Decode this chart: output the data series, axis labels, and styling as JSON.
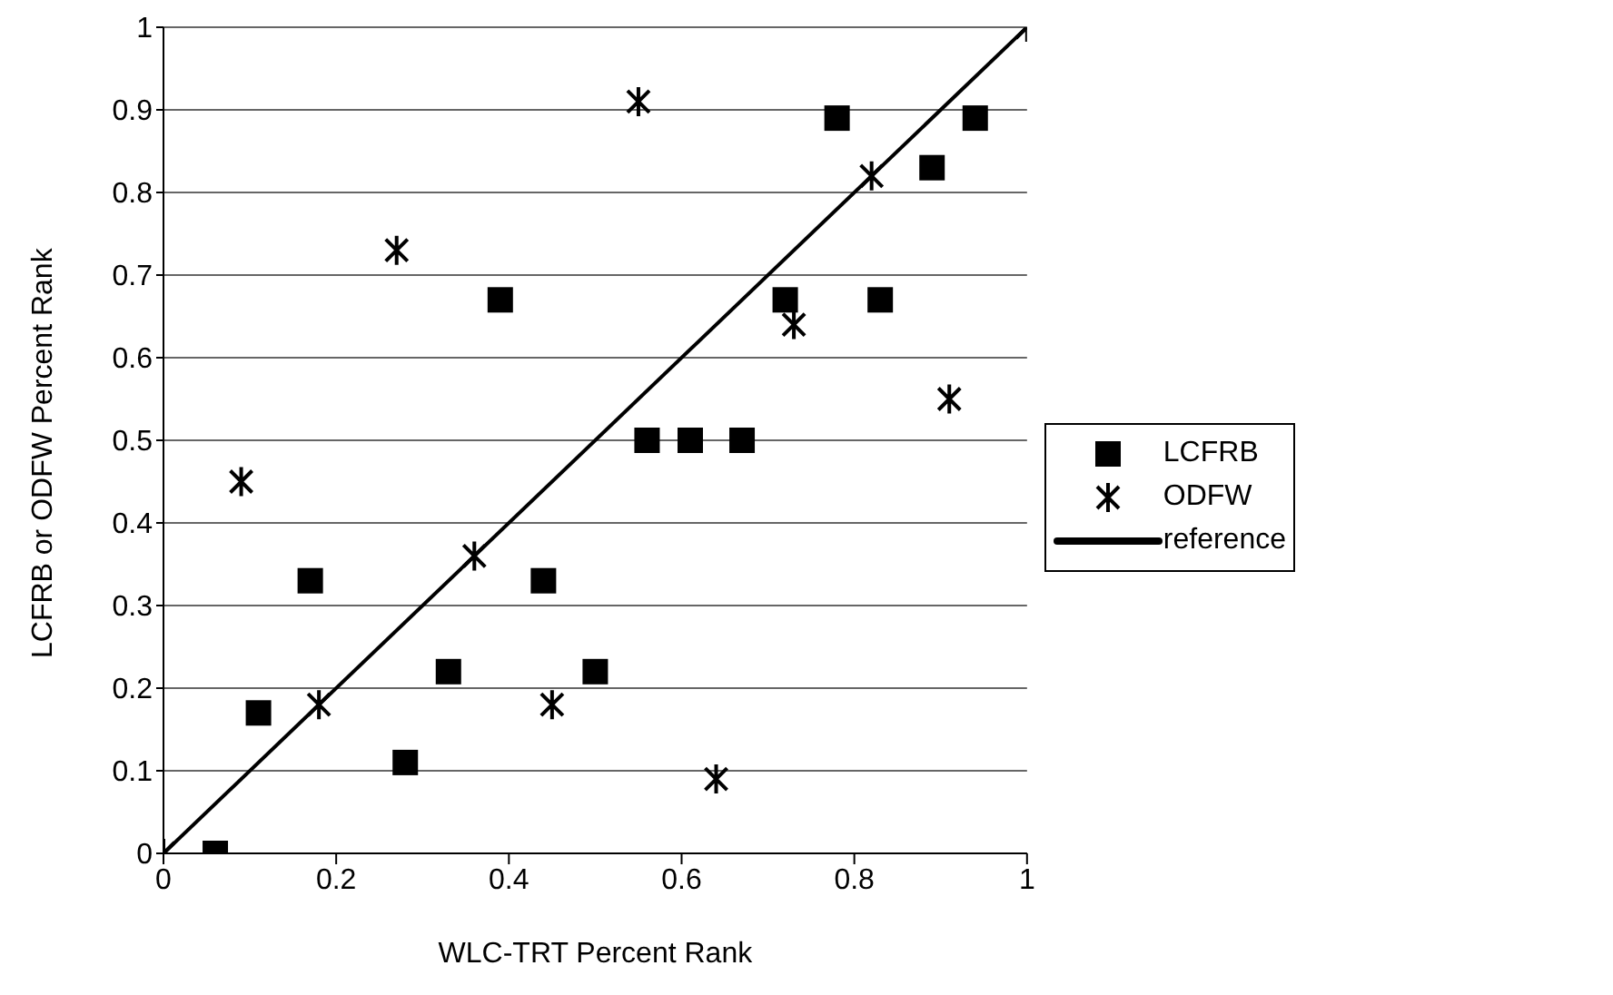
{
  "chart_data": {
    "type": "scatter",
    "xlabel": "WLC-TRT Percent Rank",
    "ylabel": "LCFRB or ODFW Percent Rank",
    "xlim": [
      0,
      1
    ],
    "ylim": [
      0,
      1
    ],
    "xticks": [
      0,
      0.2,
      0.4,
      0.6,
      0.8,
      1
    ],
    "yticks": [
      0,
      0.1,
      0.2,
      0.3,
      0.4,
      0.5,
      0.6,
      0.7,
      0.8,
      0.9,
      1
    ],
    "grid": "y",
    "legend": "right",
    "series": [
      {
        "name": "LCFRB",
        "color": "#000000",
        "marker": "square",
        "x": [
          0.06,
          0.11,
          0.17,
          0.28,
          0.33,
          0.39,
          0.44,
          0.5,
          0.56,
          0.61,
          0.67,
          0.72,
          0.78,
          0.83,
          0.89,
          0.94
        ],
        "values": [
          0,
          0.17,
          0.33,
          0.11,
          0.22,
          0.67,
          0.33,
          0.22,
          0.5,
          0.5,
          0.5,
          0.67,
          0.89,
          0.67,
          0.83,
          0.89
        ]
      },
      {
        "name": "ODFW",
        "color": "#000000",
        "marker": "cross",
        "x": [
          0,
          0.09,
          0.18,
          0.27,
          0.36,
          0.45,
          0.55,
          0.64,
          0.73,
          0.82,
          0.91,
          1
        ],
        "values": [
          0,
          0.45,
          0.18,
          0.73,
          0.36,
          0.18,
          0.91,
          0.09,
          0.64,
          0.82,
          0.55,
          1
        ]
      },
      {
        "name": "reference",
        "type": "line",
        "color": "#000000",
        "line_style": "solid",
        "x": [
          0,
          1
        ],
        "values": [
          0,
          1
        ]
      }
    ]
  }
}
